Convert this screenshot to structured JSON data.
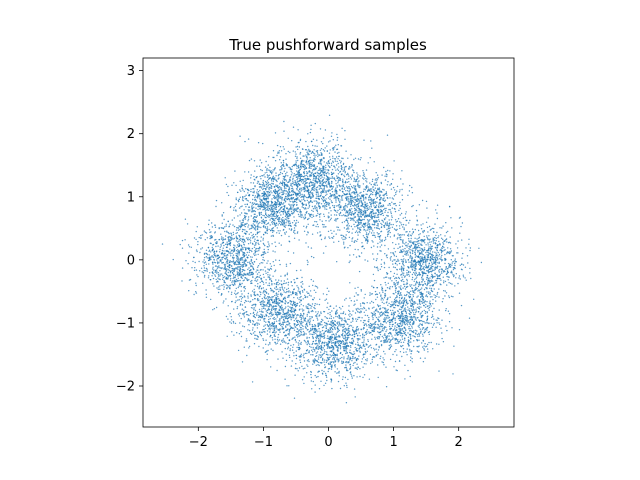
{
  "chart_data": {
    "type": "scatter",
    "title": "True pushforward samples",
    "xlabel": "",
    "ylabel": "",
    "xlim": [
      -2.85,
      2.85
    ],
    "ylim": [
      -2.65,
      3.2
    ],
    "xticks": [
      -2,
      -1,
      0,
      1,
      2
    ],
    "yticks": [
      -2,
      -1,
      0,
      1,
      2,
      3
    ],
    "xtick_labels": [
      "−2",
      "−1",
      "0",
      "1",
      "2"
    ],
    "ytick_labels": [
      "−2",
      "−1",
      "0",
      "1",
      "2",
      "3"
    ],
    "grid": false,
    "legend": "none",
    "point_color": "#1f77b4",
    "clusters": [
      {
        "center": [
          -1.45,
          0.0
        ],
        "sd": 0.3
      },
      {
        "center": [
          -0.85,
          0.9
        ],
        "sd": 0.3
      },
      {
        "center": [
          -0.2,
          1.3
        ],
        "sd": 0.3
      },
      {
        "center": [
          0.55,
          0.8
        ],
        "sd": 0.3
      },
      {
        "center": [
          1.45,
          0.0
        ],
        "sd": 0.3
      },
      {
        "center": [
          1.1,
          -0.95
        ],
        "sd": 0.3
      },
      {
        "center": [
          0.1,
          -1.3
        ],
        "sd": 0.3
      },
      {
        "center": [
          -0.75,
          -0.85
        ],
        "sd": 0.3
      }
    ],
    "sample_count": 8000
  }
}
